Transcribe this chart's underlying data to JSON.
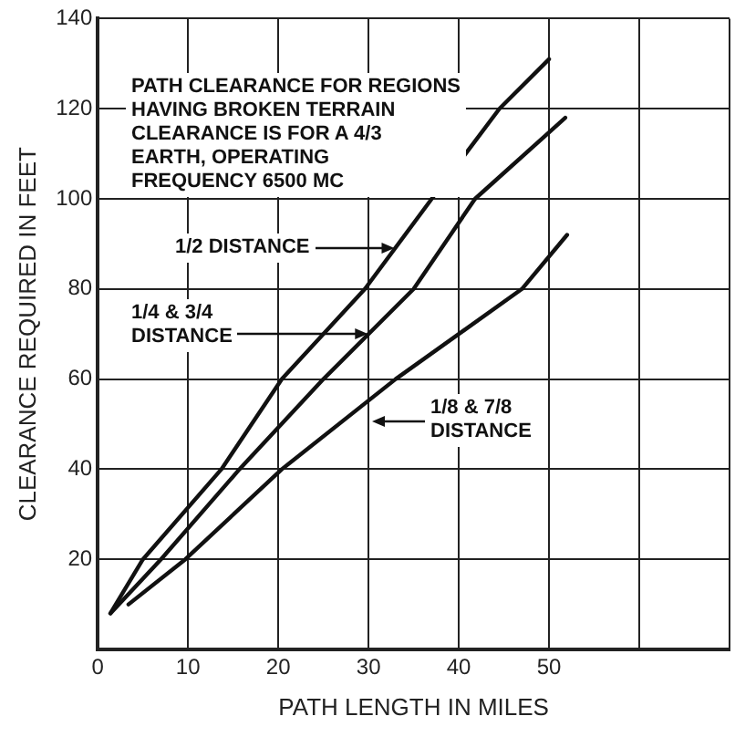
{
  "chart_data": {
    "type": "line",
    "xlabel": "PATH LENGTH IN MILES",
    "ylabel": "CLEARANCE REQUIRED IN FEET",
    "xlim": [
      0,
      70
    ],
    "xticks": [
      0,
      10,
      20,
      30,
      40,
      50,
      {
        "value": 60,
        "label": null
      },
      {
        "value": 70,
        "label": null
      }
    ],
    "ylim": [
      0,
      140
    ],
    "yticks": [
      {
        "value": 0,
        "label": null
      },
      20,
      40,
      60,
      80,
      100,
      120,
      140
    ],
    "grid": true,
    "legend": false,
    "marker": "none",
    "line_style": "solid",
    "series": [
      {
        "color": "#111111",
        "x": [
          1.4,
          5,
          13.7,
          20.4,
          29.6,
          37,
          44.5,
          50
        ],
        "values": [
          8,
          20,
          40,
          60,
          80,
          100,
          120,
          131
        ]
      },
      {
        "color": "#111111",
        "x": [
          1.4,
          7,
          15.7,
          25,
          35,
          41.8,
          51.8
        ],
        "values": [
          8,
          20,
          40,
          60,
          80,
          100,
          118
        ]
      },
      {
        "color": "#111111",
        "x": [
          3.4,
          9.7,
          20.4,
          33,
          47,
          52
        ],
        "values": [
          10,
          20,
          40,
          60,
          80,
          92
        ]
      }
    ],
    "annotations": [
      "PATH CLEARANCE FOR REGIONS\nHAVING BROKEN TERRAIN\nCLEARANCE IS FOR A 4/3\nEARTH, OPERATING\nFREQUENCY 6500 MC",
      "1/2 DISTANCE",
      {
        "text": "1/4 & 3/4\nDISTANCE",
        "x": 30,
        "y": 70
      },
      "1/8 & 7/8\nDISTANCE"
    ]
  }
}
